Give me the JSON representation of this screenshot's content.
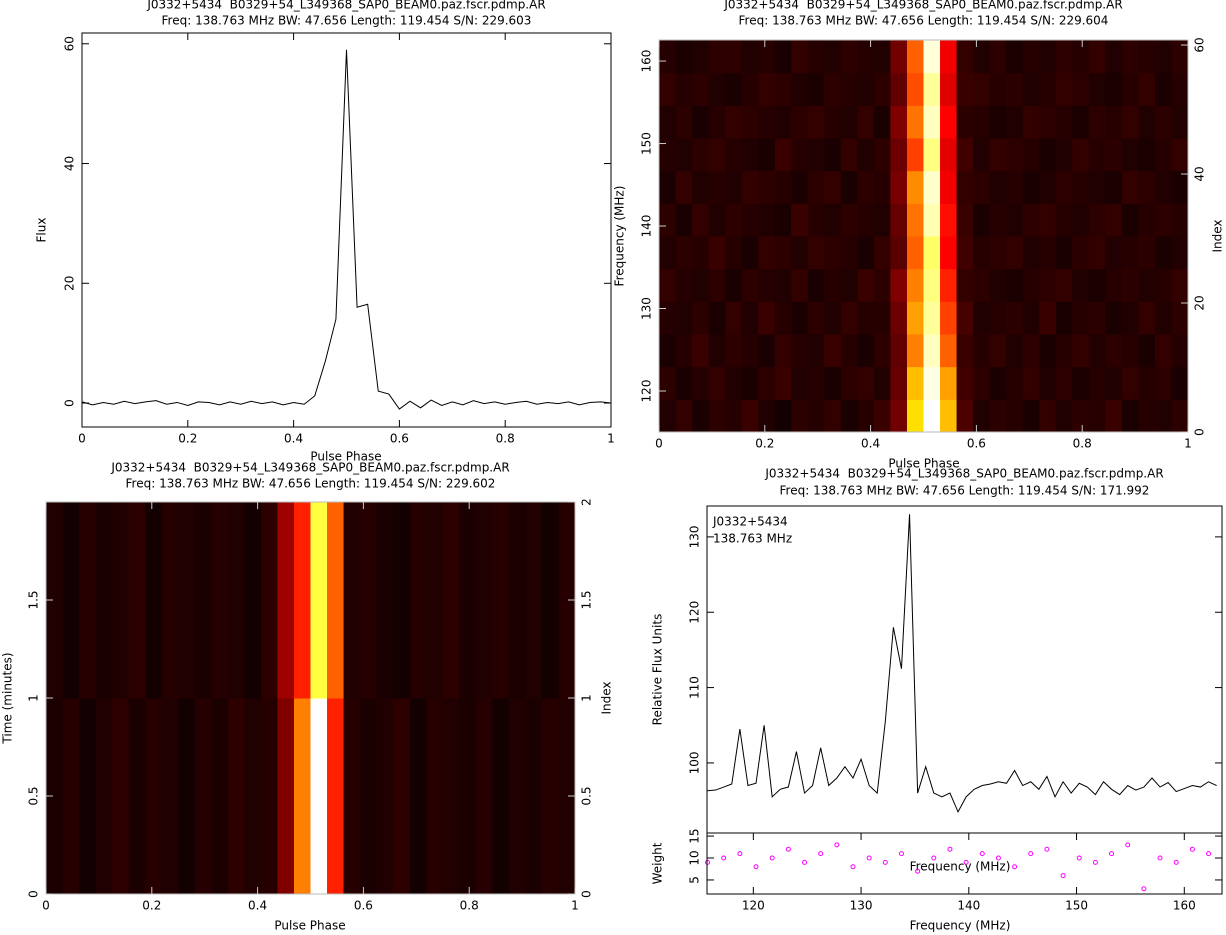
{
  "chart_data": [
    {
      "type": "line",
      "title": "J0332+5434  B0329+54_L349368_SAP0_BEAM0.paz.fscr.pdmp.AR",
      "subtitle": "Freq: 138.763 MHz BW: 47.656 Length: 119.454 S/N: 229.603",
      "xlabel": "Pulse Phase",
      "ylabel": "Flux",
      "color": "#000000",
      "x": [
        0,
        0.02,
        0.04,
        0.06,
        0.08,
        0.1,
        0.12,
        0.14,
        0.16,
        0.18,
        0.2,
        0.22,
        0.24,
        0.26,
        0.28,
        0.3,
        0.32,
        0.34,
        0.36,
        0.38,
        0.4,
        0.42,
        0.44,
        0.46,
        0.48,
        0.5,
        0.52,
        0.54,
        0.56,
        0.58,
        0.6,
        0.62,
        0.64,
        0.66,
        0.68,
        0.7,
        0.72,
        0.74,
        0.76,
        0.78,
        0.8,
        0.82,
        0.84,
        0.86,
        0.88,
        0.9,
        0.92,
        0.94,
        0.96,
        0.98,
        1
      ],
      "values": [
        0.2,
        -0.3,
        0.1,
        -0.2,
        0.3,
        -0.1,
        0.2,
        0.4,
        -0.2,
        0.1,
        -0.4,
        0.2,
        0.1,
        -0.3,
        0.2,
        -0.2,
        0.3,
        -0.1,
        0.2,
        -0.3,
        0.1,
        -0.2,
        1.2,
        7,
        14,
        59,
        16,
        16.5,
        2,
        1.5,
        -1,
        0.3,
        -0.8,
        0.5,
        -0.4,
        0.2,
        -0.3,
        0.4,
        -0.1,
        0.2,
        -0.2,
        0.1,
        0.3,
        -0.2,
        0.1,
        -0.1,
        0.2,
        -0.3,
        0.1,
        0.2,
        0
      ],
      "xlim": [
        0,
        1
      ],
      "xticks": [
        0,
        0.2,
        0.4,
        0.6,
        0.8,
        1
      ],
      "ylim": [
        -4,
        61.8
      ],
      "yticks": [
        0,
        20,
        40,
        60
      ]
    },
    {
      "type": "heatmap",
      "title": "J0332+5434  B0329+54_L349368_SAP0_BEAM0.paz.fscr.pdmp.AR",
      "subtitle": "Freq: 138.763 MHz BW: 47.656 Length: 119.454 S/N: 229.604",
      "xlabel": "Pulse Phase",
      "ylabel": "Frequency (MHz)",
      "y2label": "Index",
      "xlim": [
        0,
        1
      ],
      "xticks": [
        0,
        0.2,
        0.4,
        0.6,
        0.8,
        1
      ],
      "ylim": [
        115.03,
        162.55
      ],
      "yticks": [
        120,
        130,
        140,
        150,
        160
      ],
      "y2lim": [
        0,
        60.78
      ],
      "y2ticks": [
        0,
        20,
        40,
        60
      ],
      "z": [
        [
          5,
          8,
          4,
          7,
          6,
          9,
          5,
          3,
          7,
          6,
          8,
          4,
          6,
          9,
          18,
          75,
          100,
          70,
          12,
          5,
          7,
          6,
          4,
          8,
          5,
          7,
          6,
          9,
          4,
          6,
          5,
          7
        ],
        [
          7,
          4,
          6,
          8,
          5,
          4,
          7,
          9,
          5,
          6,
          4,
          7,
          8,
          5,
          16,
          70,
          98,
          65,
          10,
          7,
          4,
          6,
          8,
          5,
          7,
          4,
          6,
          5,
          8,
          6,
          7,
          4
        ],
        [
          4,
          6,
          9,
          5,
          7,
          6,
          4,
          8,
          6,
          5,
          9,
          6,
          4,
          7,
          15,
          60,
          95,
          55,
          9,
          6,
          8,
          5,
          7,
          4,
          6,
          8,
          5,
          7,
          6,
          4,
          8,
          6
        ],
        [
          6,
          5,
          7,
          4,
          8,
          5,
          9,
          6,
          4,
          7,
          5,
          8,
          6,
          6,
          17,
          65,
          92,
          50,
          11,
          5,
          6,
          7,
          5,
          9,
          4,
          6,
          7,
          4,
          5,
          8,
          5,
          7
        ],
        [
          8,
          6,
          5,
          7,
          4,
          7,
          6,
          5,
          8,
          4,
          6,
          5,
          9,
          7,
          20,
          60,
          90,
          45,
          8,
          7,
          5,
          4,
          6,
          7,
          8,
          5,
          4,
          6,
          7,
          5,
          6,
          8
        ],
        [
          5,
          7,
          6,
          9,
          6,
          4,
          8,
          7,
          5,
          8,
          7,
          6,
          4,
          8,
          14,
          55,
          88,
          40,
          10,
          6,
          7,
          8,
          5,
          6,
          4,
          7,
          8,
          5,
          6,
          7,
          4,
          5
        ],
        [
          7,
          4,
          8,
          5,
          7,
          6,
          5,
          4,
          9,
          6,
          5,
          7,
          6,
          5,
          16,
          58,
          94,
          42,
          9,
          4,
          6,
          5,
          7,
          8,
          6,
          5,
          7,
          8,
          4,
          6,
          7,
          6
        ],
        [
          4,
          8,
          5,
          6,
          5,
          8,
          7,
          6,
          4,
          7,
          8,
          4,
          7,
          6,
          19,
          62,
          96,
          38,
          8,
          7,
          5,
          6,
          4,
          5,
          7,
          6,
          5,
          4,
          8,
          7,
          5,
          4
        ],
        [
          6,
          5,
          7,
          8,
          6,
          5,
          4,
          9,
          6,
          5,
          4,
          8,
          5,
          7,
          17,
          50,
          90,
          36,
          10,
          5,
          8,
          7,
          6,
          4,
          5,
          8,
          6,
          7,
          5,
          4,
          6,
          8
        ],
        [
          5,
          7,
          4,
          6,
          8,
          7,
          6,
          5,
          7,
          8,
          6,
          5,
          8,
          4,
          20,
          58,
          95,
          40,
          7,
          6,
          4,
          5,
          8,
          7,
          6,
          4,
          7,
          6,
          8,
          5,
          7,
          5
        ],
        [
          8,
          6,
          7,
          5,
          4,
          6,
          8,
          7,
          5,
          4,
          7,
          6,
          5,
          7,
          15,
          52,
          92,
          35,
          9,
          8,
          6,
          7,
          5,
          6,
          8,
          7,
          5,
          4,
          6,
          8,
          4,
          6
        ],
        [
          6,
          4,
          5,
          7,
          7,
          5,
          6,
          4,
          8,
          6,
          5,
          7,
          6,
          5,
          18,
          55,
          97,
          38,
          8,
          5,
          7,
          4,
          6,
          5,
          7,
          6,
          8,
          5,
          7,
          6,
          5,
          7
        ]
      ]
    },
    {
      "type": "heatmap",
      "title": "J0332+5434  B0329+54_L349368_SAP0_BEAM0.paz.fscr.pdmp.AR",
      "subtitle": "Freq: 138.763 MHz BW: 47.656 Length: 119.454 S/N: 229.602",
      "xlabel": "Pulse Phase",
      "ylabel": "Time (minutes)",
      "y2label": "Index",
      "xlim": [
        0,
        1
      ],
      "xticks": [
        0,
        0.2,
        0.4,
        0.6,
        0.8,
        1
      ],
      "ylim": [
        0,
        2
      ],
      "yticks": [
        0,
        0.5,
        1,
        1.5
      ],
      "y2lim": [
        0,
        2
      ],
      "y2ticks": [
        0,
        0.5,
        1,
        1.5,
        2
      ],
      "z": [
        [
          4,
          6,
          3,
          5,
          7,
          4,
          6,
          5,
          3,
          6,
          4,
          7,
          5,
          6,
          20,
          60,
          100,
          45,
          6,
          4,
          5,
          7,
          3,
          6,
          5,
          4,
          6,
          3,
          5,
          4,
          6,
          5
        ],
        [
          5,
          3,
          6,
          4,
          5,
          7,
          3,
          6,
          5,
          4,
          6,
          5,
          3,
          7,
          25,
          45,
          85,
          55,
          5,
          6,
          4,
          3,
          6,
          5,
          7,
          4,
          5,
          6,
          4,
          5,
          3,
          6
        ]
      ]
    },
    {
      "type": "line",
      "title": "J0332+5434  B0329+54_L349368_SAP0_BEAM0.paz.fscr.pdmp.AR",
      "subtitle": "Freq: 138.763 MHz BW: 47.656 Length: 119.454 S/N: 171.992",
      "xlabel": "Frequency (MHz)",
      "ylabel": "Relative Flux Units",
      "color": "#000000",
      "annotations": [
        "J0332+5434",
        "138.763 MHz"
      ],
      "x": [
        115.75,
        116.5,
        117.25,
        118,
        118.75,
        119.5,
        120.25,
        121,
        121.75,
        122.5,
        123.25,
        124,
        124.75,
        125.5,
        126.25,
        127,
        127.75,
        128.5,
        129.25,
        130,
        130.75,
        131.5,
        132.25,
        133,
        133.75,
        134.5,
        135.25,
        136,
        136.75,
        137.5,
        138.25,
        139,
        139.75,
        140.5,
        141.25,
        142,
        142.75,
        143.5,
        144.25,
        145,
        145.75,
        146.5,
        147.25,
        148,
        148.75,
        149.5,
        150.25,
        151,
        151.75,
        152.5,
        153.25,
        154,
        154.75,
        155.5,
        156.25,
        157,
        157.75,
        158.5,
        159.25,
        160,
        160.75,
        161.5,
        162.25,
        163
      ],
      "values": [
        96.3,
        96.4,
        96.8,
        97.2,
        104.5,
        97,
        97.3,
        105,
        95.5,
        96.5,
        96.8,
        101.5,
        96,
        97,
        102,
        97,
        98,
        99.5,
        98,
        100.5,
        97,
        96,
        105.5,
        118,
        112.5,
        133,
        96,
        99.5,
        96,
        95.5,
        96,
        93.5,
        95.5,
        96.5,
        97,
        97.2,
        97.5,
        97.3,
        99,
        97,
        97.5,
        96.5,
        98.2,
        95.5,
        97.5,
        96,
        97.3,
        96.8,
        95.8,
        97.5,
        96.5,
        95.8,
        97,
        96.4,
        96.8,
        98,
        96.8,
        97.4,
        96.2,
        96.6,
        97,
        96.8,
        97.5,
        97
      ],
      "xlim": [
        115.7,
        163.5
      ],
      "ylim": [
        90.7,
        134.1
      ],
      "yticks": [
        100,
        110,
        120,
        130
      ]
    },
    {
      "type": "scatter",
      "xlabel": "Frequency (MHz)",
      "ylabel": "Weight",
      "color": "#ff00ff",
      "x": [
        115.75,
        117.25,
        118.75,
        120.25,
        121.75,
        123.25,
        124.75,
        126.25,
        127.75,
        129.25,
        130.75,
        132.25,
        133.75,
        135.25,
        136.75,
        138.25,
        139.75,
        141.25,
        142.75,
        144.25,
        145.75,
        147.25,
        148.75,
        150.25,
        151.75,
        153.25,
        154.75,
        156.25,
        157.75,
        159.25,
        160.75,
        162.25
      ],
      "values": [
        9,
        10,
        11,
        8,
        10,
        12,
        9,
        11,
        13,
        8,
        10,
        9,
        11,
        7,
        10,
        12,
        9,
        11,
        10,
        8,
        11,
        12,
        6,
        10,
        9,
        11,
        13,
        3,
        10,
        9,
        12,
        11
      ],
      "xlim": [
        115.7,
        163.5
      ],
      "xticks": [
        120,
        130,
        140,
        150,
        160
      ],
      "ylim": [
        1.8,
        15.7
      ],
      "yticks": [
        5,
        10,
        15
      ]
    }
  ]
}
